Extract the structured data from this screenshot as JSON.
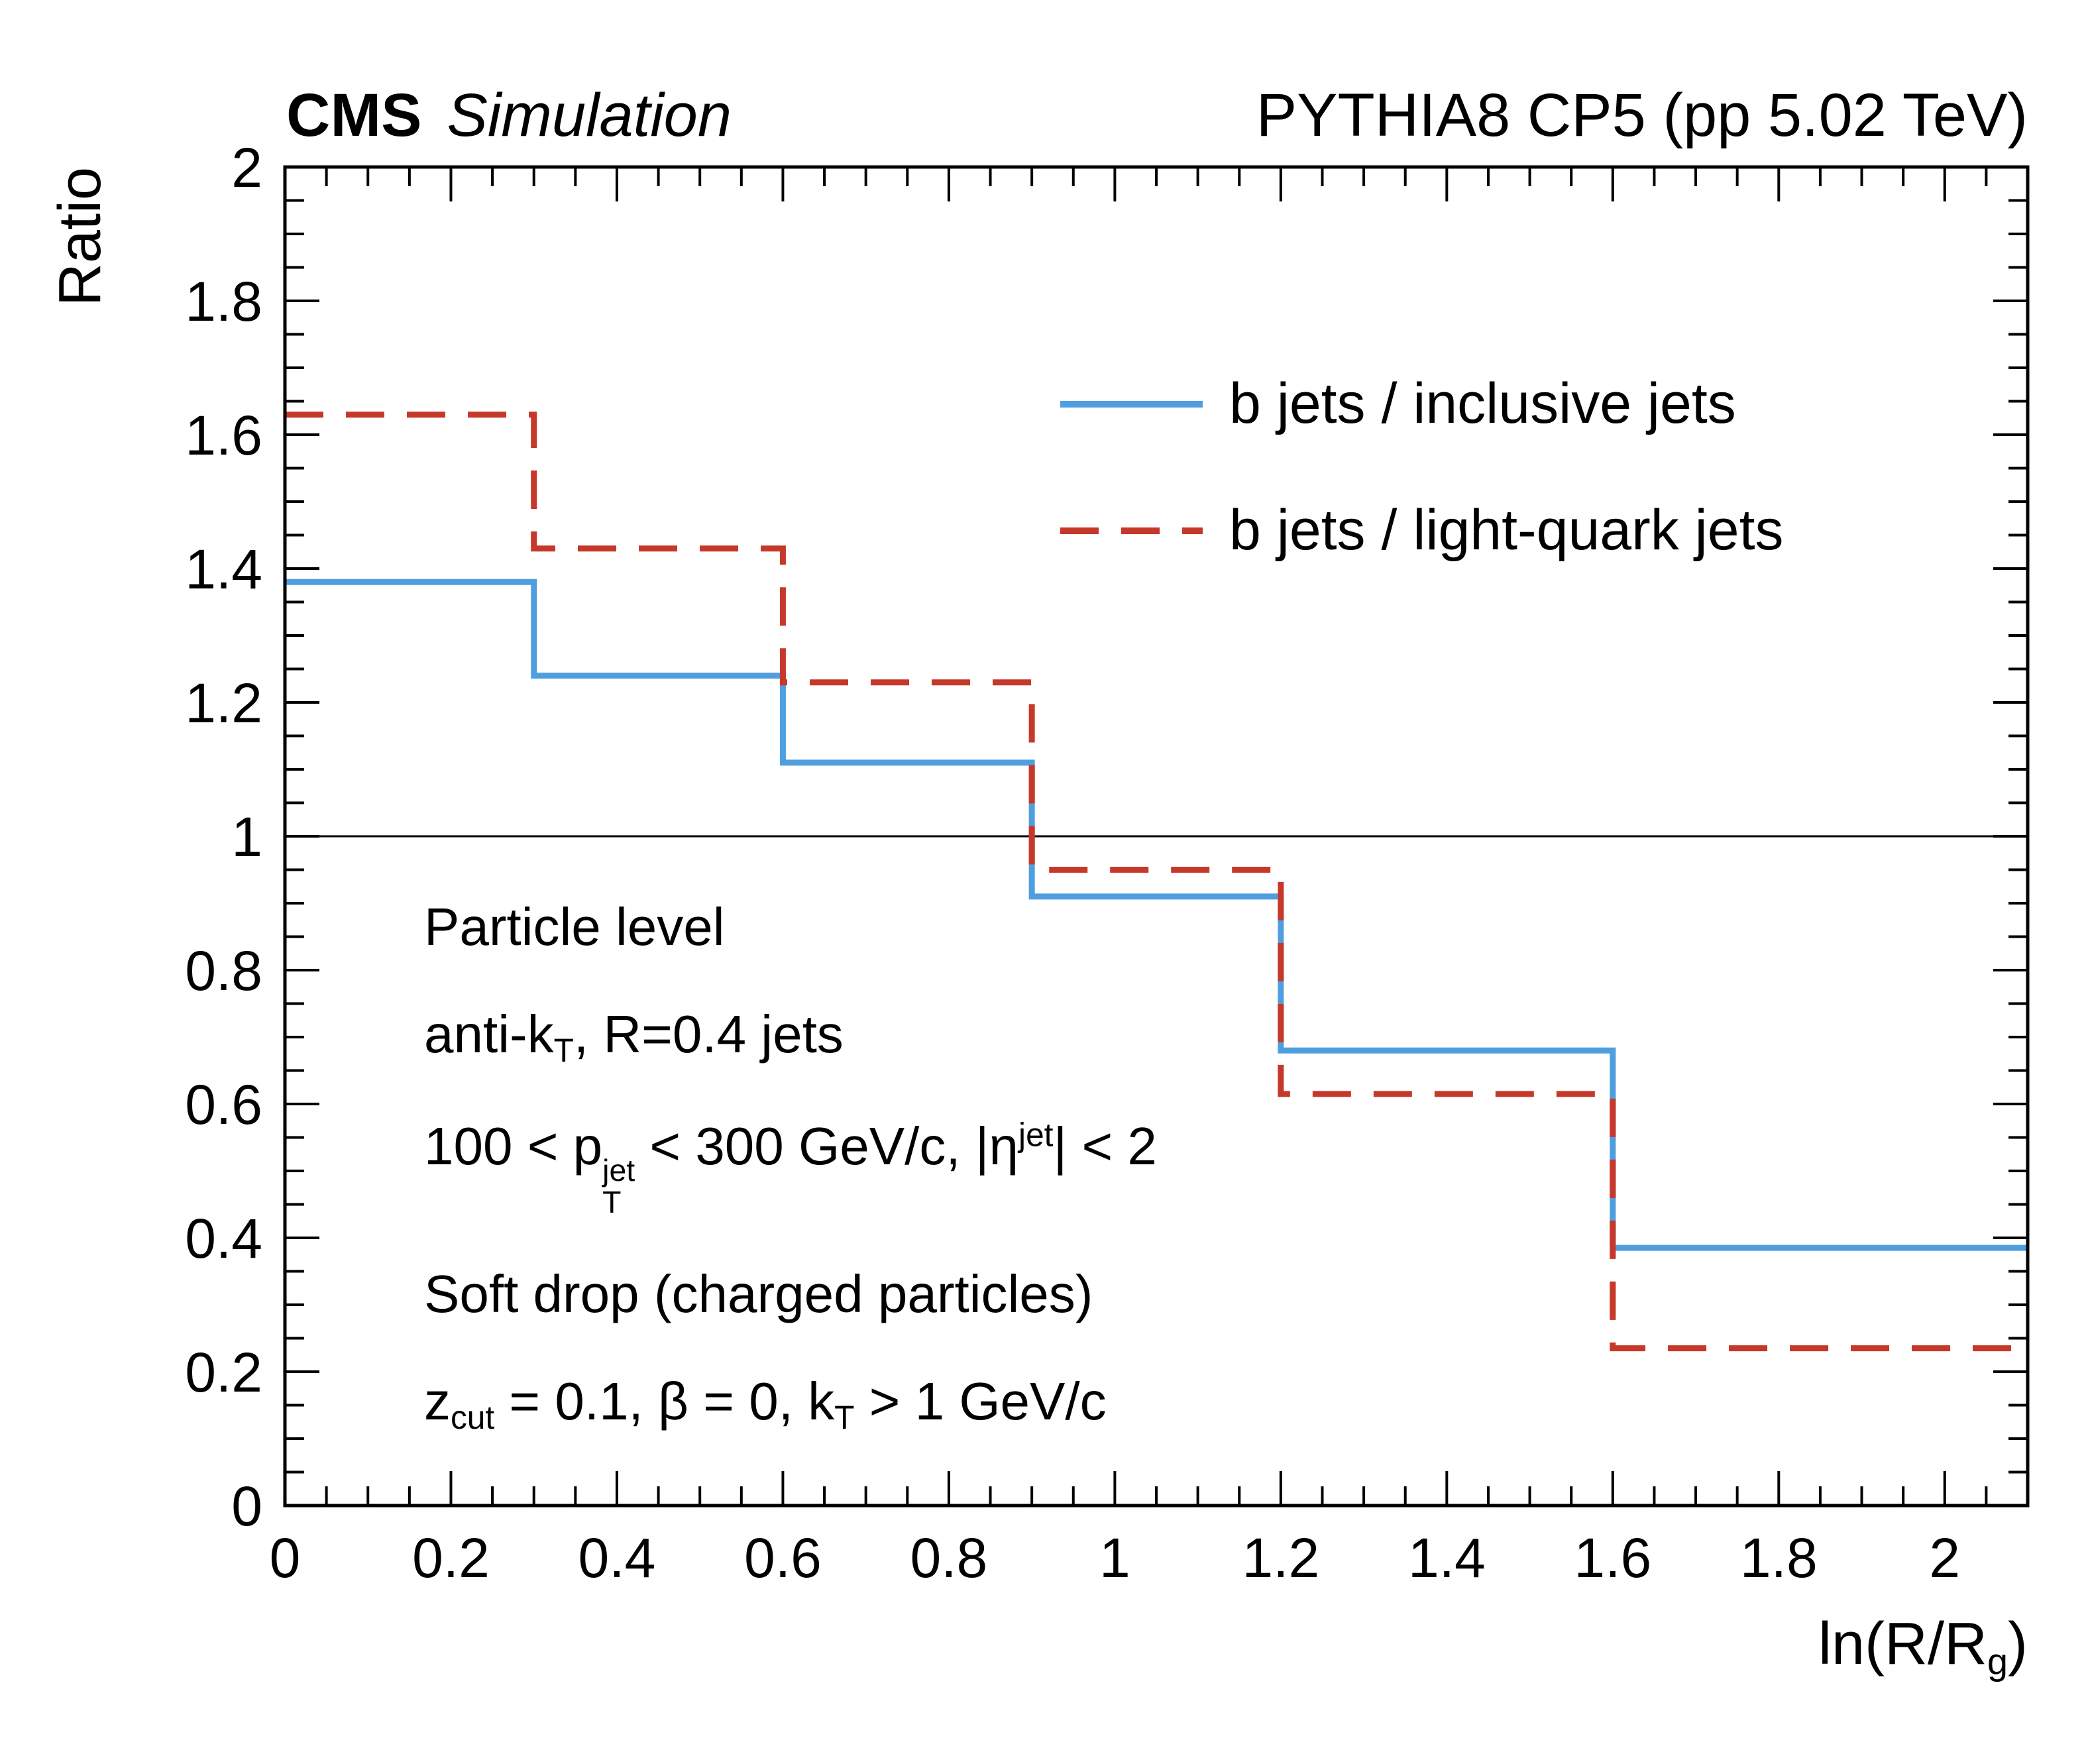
{
  "header": {
    "cms": "CMS",
    "simulation": "Simulation",
    "right": "PYTHIA8 CP5 (pp 5.02 TeV)"
  },
  "chart_data": {
    "type": "line",
    "subtype": "step-histogram-ratio",
    "title": "",
    "xlabel": "ln(R/R_g)",
    "ylabel": "Ratio",
    "xlim": [
      0,
      2.1
    ],
    "ylim": [
      0,
      2
    ],
    "grid": false,
    "legend_position": "upper right",
    "x_tick_values": [
      0,
      0.2,
      0.4,
      0.6,
      0.8,
      1,
      1.2,
      1.4,
      1.6,
      1.8,
      2
    ],
    "x_tick_labels": [
      "0",
      "0.2",
      "0.4",
      "0.6",
      "0.8",
      "1",
      "1.2",
      "1.4",
      "1.6",
      "1.8",
      "2"
    ],
    "y_tick_values": [
      0,
      0.2,
      0.4,
      0.6,
      0.8,
      1,
      1.2,
      1.4,
      1.6,
      1.8,
      2
    ],
    "y_tick_labels": [
      "0",
      "0.2",
      "0.4",
      "0.6",
      "0.8",
      "1",
      "1.2",
      "1.4",
      "1.6",
      "1.8",
      "2"
    ],
    "minor_tick_step": 0.05,
    "major_tick_step": 0.2,
    "reference_line_y": 1,
    "bin_edges": [
      0,
      0.3,
      0.6,
      0.9,
      1.2,
      1.6,
      2.1
    ],
    "series": [
      {
        "name": "b jets / inclusive jets",
        "color": "#4f9fe0",
        "line_style": "solid",
        "values": [
          1.38,
          1.24,
          1.11,
          0.91,
          0.68,
          0.385
        ]
      },
      {
        "name": "b jets / light-quark jets",
        "color": "#c6392a",
        "line_style": "dashed",
        "values": [
          1.63,
          1.43,
          1.23,
          0.95,
          0.615,
          0.235
        ]
      }
    ],
    "xlabel_rich": [
      {
        "t": "ln(R/R"
      },
      {
        "sub": "g"
      },
      {
        "t": ")"
      }
    ]
  },
  "annotations": {
    "lines": [
      {
        "text": "Particle level",
        "rich": [
          {
            "t": "Particle level"
          }
        ]
      },
      {
        "text": "anti-k_T, R=0.4 jets",
        "rich": [
          {
            "t": "anti-k"
          },
          {
            "sub": "T"
          },
          {
            "t": ", R=0.4 jets"
          }
        ]
      },
      {
        "text": "100 < p_T^jet < 300 GeV/c, |eta^jet| < 2",
        "rich": [
          {
            "t": "100 < p"
          },
          {
            "stack": {
              "top": "jet",
              "bot": "T"
            }
          },
          {
            "t": " < 300 GeV/c, |η"
          },
          {
            "sup": "jet"
          },
          {
            "t": "| < 2"
          }
        ]
      },
      {
        "text": "Soft drop (charged particles)",
        "rich": [
          {
            "t": "Soft drop (charged particles)"
          }
        ]
      },
      {
        "text": "z_cut = 0.1, beta = 0, k_T > 1 GeV/c",
        "rich": [
          {
            "t": "z"
          },
          {
            "sub": "cut"
          },
          {
            "t": " = 0.1, β = 0, k"
          },
          {
            "sub": "T"
          },
          {
            "t": " > 1 GeV/c"
          }
        ]
      }
    ]
  }
}
